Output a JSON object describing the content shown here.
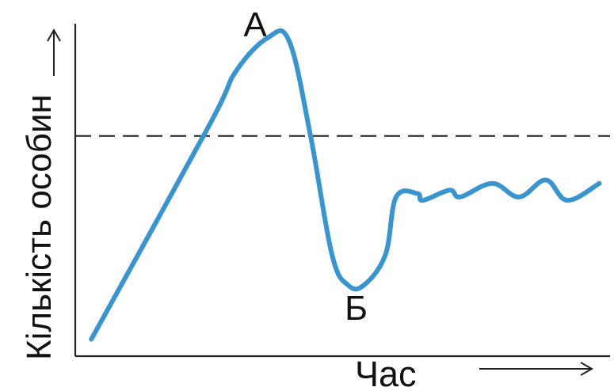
{
  "chart_data": {
    "type": "line",
    "xlabel": "Час",
    "ylabel": "Кількість особин",
    "grid": false,
    "legend": "none",
    "annotations": [
      {
        "label": "А",
        "x": 0.36,
        "y": 0.94
      },
      {
        "label": "Б",
        "x": 0.54,
        "y": 0.21
      }
    ],
    "reference_line": {
      "style": "dashed",
      "y": 0.65
    },
    "series": [
      {
        "color": "#3a95cf",
        "x": [
          0.03,
          0.25,
          0.3,
          0.36,
          0.4,
          0.44,
          0.48,
          0.51,
          0.54,
          0.58,
          0.6,
          0.64,
          0.65,
          0.7,
          0.72,
          0.78,
          0.83,
          0.88,
          0.92,
          0.98
        ],
        "y": [
          0.05,
          0.68,
          0.84,
          0.94,
          0.93,
          0.65,
          0.3,
          0.21,
          0.21,
          0.3,
          0.47,
          0.48,
          0.46,
          0.49,
          0.47,
          0.51,
          0.47,
          0.52,
          0.46,
          0.51
        ]
      }
    ],
    "xlim": [
      0,
      1
    ],
    "ylim": [
      0,
      1
    ]
  }
}
